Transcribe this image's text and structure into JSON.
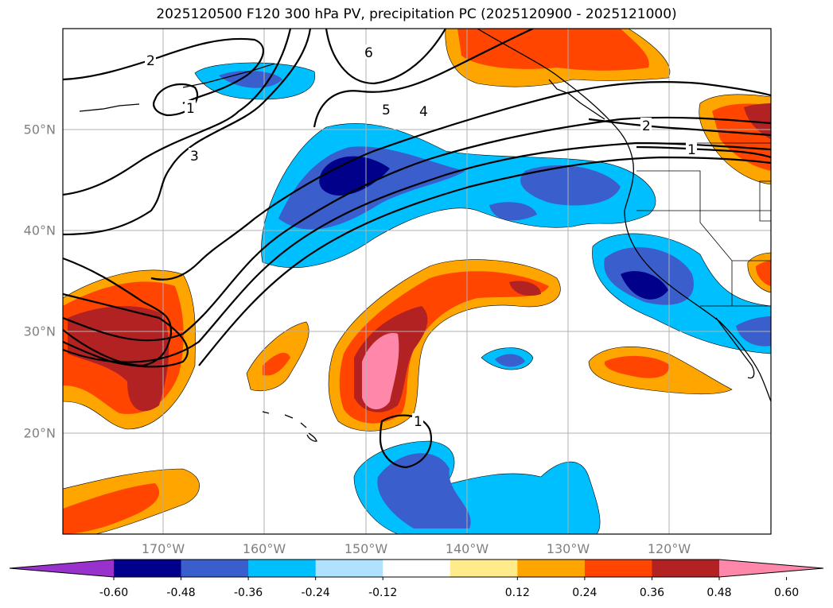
{
  "title": "2025120500 F120 300 hPa PV, precipitation PC (2025120900 - 2025121000)",
  "axes": {
    "lon_labels": [
      "170°W",
      "160°W",
      "150°W",
      "140°W",
      "130°W",
      "120°W"
    ],
    "lat_labels": [
      "50°N",
      "40°N",
      "30°N",
      "20°N"
    ]
  },
  "contour_labels": [
    "2",
    "1",
    "3",
    "6",
    "5",
    "4",
    "2",
    "1",
    "1"
  ],
  "colorbar": {
    "colors": [
      "#9932cc",
      "#00008b",
      "#3a5fcd",
      "#00bfff",
      "#b0e2ff",
      "#ffffff",
      "#ffeb8c",
      "#ffa500",
      "#ff4500",
      "#b22222",
      "#ff88aa"
    ],
    "ticks": [
      "-0.60",
      "-0.48",
      "-0.36",
      "-0.24",
      "-0.12",
      "0.12",
      "0.24",
      "0.36",
      "0.48",
      "0.60"
    ]
  }
}
